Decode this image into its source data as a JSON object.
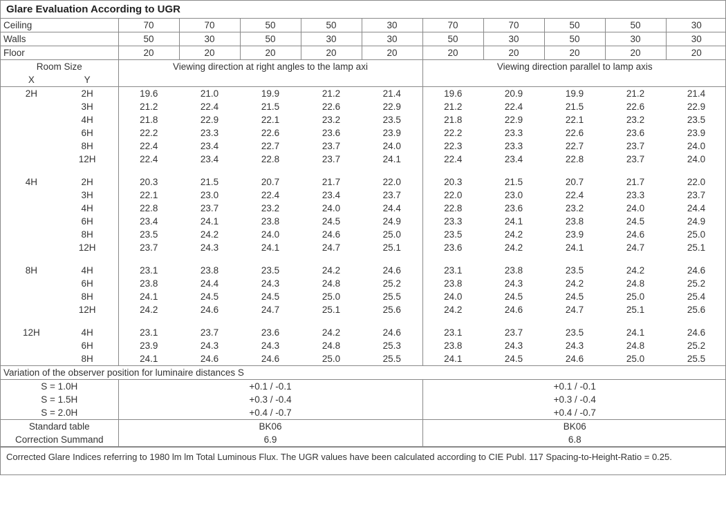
{
  "title": "Glare Evaluation According to UGR",
  "surfaces": {
    "ceiling_label": "Ceiling",
    "walls_label": "Walls",
    "floor_label": "Floor",
    "ceiling": [
      70,
      70,
      50,
      50,
      30,
      70,
      70,
      50,
      50,
      30
    ],
    "walls": [
      50,
      30,
      50,
      30,
      30,
      50,
      30,
      50,
      30,
      30
    ],
    "floor": [
      20,
      20,
      20,
      20,
      20,
      20,
      20,
      20,
      20,
      20
    ]
  },
  "room_size_label": "Room Size",
  "room_size_x": "X",
  "room_size_y": "Y",
  "section_headers": {
    "right_angles": "Viewing direction at right angles to the lamp axi",
    "parallel": "Viewing direction parallel to lamp axis"
  },
  "blocks": [
    {
      "x": "2H",
      "rows": [
        {
          "y": "2H",
          "v": [
            19.6,
            21.0,
            19.9,
            21.2,
            21.4,
            19.6,
            20.9,
            19.9,
            21.2,
            21.4
          ]
        },
        {
          "y": "3H",
          "v": [
            21.2,
            22.4,
            21.5,
            22.6,
            22.9,
            21.2,
            22.4,
            21.5,
            22.6,
            22.9
          ]
        },
        {
          "y": "4H",
          "v": [
            21.8,
            22.9,
            22.1,
            23.2,
            23.5,
            21.8,
            22.9,
            22.1,
            23.2,
            23.5
          ]
        },
        {
          "y": "6H",
          "v": [
            22.2,
            23.3,
            22.6,
            23.6,
            23.9,
            22.2,
            23.3,
            22.6,
            23.6,
            23.9
          ]
        },
        {
          "y": "8H",
          "v": [
            22.4,
            23.4,
            22.7,
            23.7,
            24.0,
            22.3,
            23.3,
            22.7,
            23.7,
            24.0
          ]
        },
        {
          "y": "12H",
          "v": [
            22.4,
            23.4,
            22.8,
            23.7,
            24.1,
            22.4,
            23.4,
            22.8,
            23.7,
            24.0
          ]
        }
      ]
    },
    {
      "x": "4H",
      "rows": [
        {
          "y": "2H",
          "v": [
            20.3,
            21.5,
            20.7,
            21.7,
            22.0,
            20.3,
            21.5,
            20.7,
            21.7,
            22.0
          ]
        },
        {
          "y": "3H",
          "v": [
            22.1,
            23.0,
            22.4,
            23.4,
            23.7,
            22.0,
            23.0,
            22.4,
            23.3,
            23.7
          ]
        },
        {
          "y": "4H",
          "v": [
            22.8,
            23.7,
            23.2,
            24.0,
            24.4,
            22.8,
            23.6,
            23.2,
            24.0,
            24.4
          ]
        },
        {
          "y": "6H",
          "v": [
            23.4,
            24.1,
            23.8,
            24.5,
            24.9,
            23.3,
            24.1,
            23.8,
            24.5,
            24.9
          ]
        },
        {
          "y": "8H",
          "v": [
            23.5,
            24.2,
            24.0,
            24.6,
            25.0,
            23.5,
            24.2,
            23.9,
            24.6,
            25.0
          ]
        },
        {
          "y": "12H",
          "v": [
            23.7,
            24.3,
            24.1,
            24.7,
            25.1,
            23.6,
            24.2,
            24.1,
            24.7,
            25.1
          ]
        }
      ]
    },
    {
      "x": "8H",
      "rows": [
        {
          "y": "4H",
          "v": [
            23.1,
            23.8,
            23.5,
            24.2,
            24.6,
            23.1,
            23.8,
            23.5,
            24.2,
            24.6
          ]
        },
        {
          "y": "6H",
          "v": [
            23.8,
            24.4,
            24.3,
            24.8,
            25.2,
            23.8,
            24.3,
            24.2,
            24.8,
            25.2
          ]
        },
        {
          "y": "8H",
          "v": [
            24.1,
            24.5,
            24.5,
            25.0,
            25.5,
            24.0,
            24.5,
            24.5,
            25.0,
            25.4
          ]
        },
        {
          "y": "12H",
          "v": [
            24.2,
            24.6,
            24.7,
            25.1,
            25.6,
            24.2,
            24.6,
            24.7,
            25.1,
            25.6
          ]
        }
      ]
    },
    {
      "x": "12H",
      "rows": [
        {
          "y": "4H",
          "v": [
            23.1,
            23.7,
            23.6,
            24.2,
            24.6,
            23.1,
            23.7,
            23.5,
            24.1,
            24.6
          ]
        },
        {
          "y": "6H",
          "v": [
            23.9,
            24.3,
            24.3,
            24.8,
            25.3,
            23.8,
            24.3,
            24.3,
            24.8,
            25.2
          ]
        },
        {
          "y": "8H",
          "v": [
            24.1,
            24.6,
            24.6,
            25.0,
            25.5,
            24.1,
            24.5,
            24.6,
            25.0,
            25.5
          ]
        }
      ]
    }
  ],
  "variation": {
    "header": "Variation of the observer position for luminaire distances S",
    "rows": [
      {
        "s": "S = 1.0H",
        "ra": "+0.1 / -0.1",
        "pa": "+0.1 / -0.1"
      },
      {
        "s": "S = 1.5H",
        "ra": "+0.3 / -0.4",
        "pa": "+0.3 / -0.4"
      },
      {
        "s": "S = 2.0H",
        "ra": "+0.4 / -0.7",
        "pa": "+0.4 / -0.7"
      }
    ]
  },
  "std_table_label": "Standard table",
  "std_table": {
    "ra": "BK06",
    "pa": "BK06"
  },
  "corr_sum_label": "Correction Summand",
  "corr_sum": {
    "ra": "6.9",
    "pa": "6.8"
  },
  "footnote": "Corrected Glare Indices referring to 1980 lm lm Total Luminous Flux. The UGR values have been calculated according to CIE Publ. 117    Spacing-to-Height-Ratio = 0.25.",
  "style": {
    "border_color": "#888888",
    "text_color": "#333333",
    "fontsize_body": 13.5,
    "fontsize_title": 15,
    "fontsize_foot": 13,
    "title_weight": "bold"
  }
}
